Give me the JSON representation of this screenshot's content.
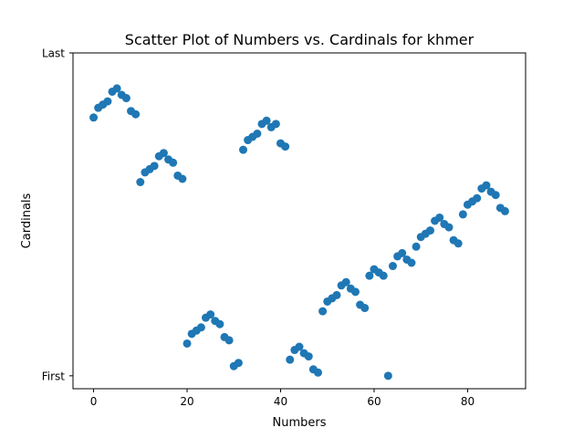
{
  "chart_data": {
    "type": "scatter",
    "title": "Scatter Plot of Numbers vs. Cardinals for khmer",
    "xlabel": "Numbers",
    "ylabel": "Cardinals",
    "xlim": [
      -4.4,
      92.4
    ],
    "ylim": [
      -0.04,
      1.0
    ],
    "x_ticks": [
      0,
      20,
      40,
      60,
      80
    ],
    "x_tick_labels": [
      "0",
      "20",
      "40",
      "60",
      "80"
    ],
    "y_ticks": [
      0,
      1
    ],
    "y_tick_labels": [
      "First",
      "Last"
    ],
    "grid": false,
    "color": "#1f77b4",
    "x": [
      0,
      1,
      2,
      3,
      4,
      5,
      6,
      7,
      8,
      9,
      10,
      11,
      12,
      13,
      14,
      15,
      16,
      17,
      18,
      19,
      20,
      21,
      22,
      23,
      24,
      25,
      26,
      27,
      28,
      29,
      30,
      31,
      32,
      33,
      34,
      35,
      36,
      37,
      38,
      39,
      40,
      41,
      42,
      43,
      44,
      45,
      46,
      47,
      48,
      49,
      50,
      51,
      52,
      53,
      54,
      55,
      56,
      57,
      58,
      59,
      60,
      61,
      62,
      63,
      64,
      65,
      66,
      67,
      68,
      69,
      70,
      71,
      72,
      73,
      74,
      75,
      76,
      77,
      78,
      79,
      80,
      81,
      82,
      83,
      84,
      85,
      86,
      87,
      88
    ],
    "y": [
      0.8,
      0.83,
      0.84,
      0.85,
      0.88,
      0.89,
      0.87,
      0.86,
      0.82,
      0.81,
      0.6,
      0.63,
      0.64,
      0.65,
      0.68,
      0.69,
      0.67,
      0.66,
      0.62,
      0.61,
      0.1,
      0.13,
      0.14,
      0.15,
      0.18,
      0.19,
      0.17,
      0.16,
      0.12,
      0.11,
      0.03,
      0.04,
      0.7,
      0.73,
      0.74,
      0.75,
      0.78,
      0.79,
      0.77,
      0.78,
      0.72,
      0.71,
      0.05,
      0.08,
      0.09,
      0.07,
      0.06,
      0.02,
      0.01,
      0.2,
      0.23,
      0.24,
      0.25,
      0.28,
      0.29,
      0.27,
      0.26,
      0.22,
      0.21,
      0.31,
      0.33,
      0.32,
      0.31,
      0.0,
      0.34,
      0.37,
      0.38,
      0.36,
      0.35,
      0.4,
      0.43,
      0.44,
      0.45,
      0.48,
      0.49,
      0.47,
      0.46,
      0.42,
      0.41,
      0.5,
      0.53,
      0.54,
      0.55,
      0.58,
      0.59,
      0.57,
      0.56,
      0.52,
      0.51
    ]
  }
}
